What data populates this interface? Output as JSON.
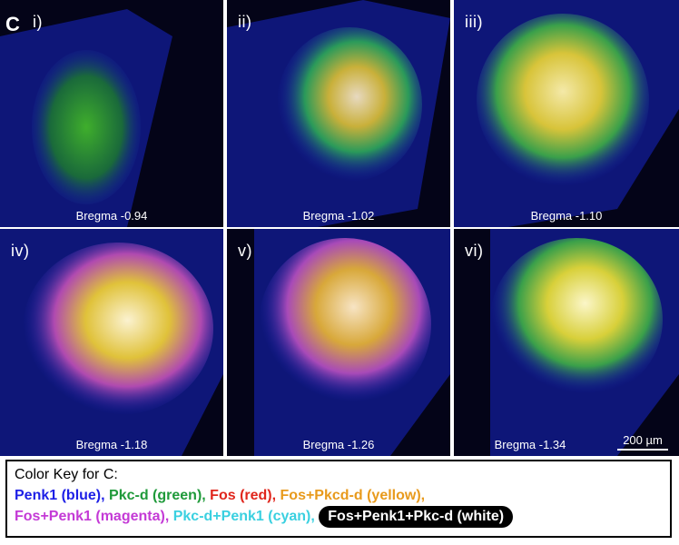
{
  "figure_label": "C",
  "panels": [
    {
      "numeral": "i)",
      "bregma": "Bregma -0.94"
    },
    {
      "numeral": "ii)",
      "bregma": "Bregma -1.02"
    },
    {
      "numeral": "iii)",
      "bregma": "Bregma -1.10"
    },
    {
      "numeral": "iv)",
      "bregma": "Bregma -1.18"
    },
    {
      "numeral": "v)",
      "bregma": "Bregma -1.26"
    },
    {
      "numeral": "vi)",
      "bregma": "Bregma -1.34"
    }
  ],
  "scale_bar": {
    "label": "200 µm"
  },
  "color_key": {
    "title": "Color Key for C:",
    "line1": [
      {
        "text": "Penk1 (blue),",
        "color": "#1d1fe6"
      },
      {
        "text": "Pkc-d (green),",
        "color": "#1f9a3a"
      },
      {
        "text": "Fos (red),",
        "color": "#e0261c"
      },
      {
        "text": "Fos+Pkcd-d (yellow),",
        "color": "#e89a1c"
      }
    ],
    "line2": [
      {
        "text": "Fos+Penk1 (magenta),",
        "color": "#c43ad6"
      },
      {
        "text": "Pkc-d+Penk1 (cyan),",
        "color": "#3ad0e0"
      }
    ],
    "white_entry": {
      "text": "Fos+Penk1+Pkc-d (white)",
      "color": "#ffffff"
    }
  }
}
